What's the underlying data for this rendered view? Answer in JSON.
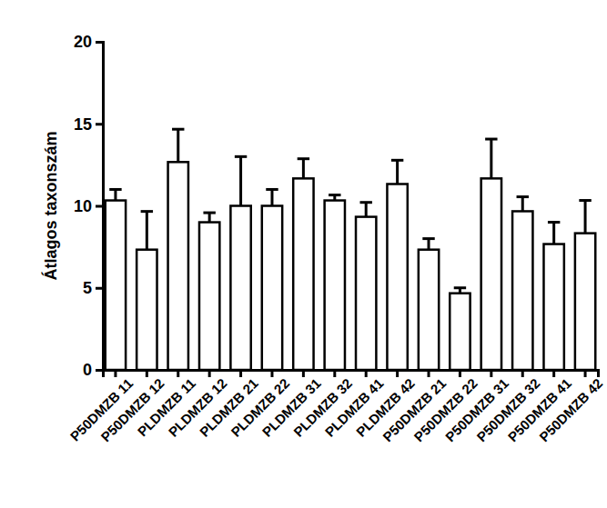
{
  "chart_data": {
    "type": "bar",
    "y_label": "Átlagos taxonszám",
    "categories": [
      "P50DMZB 11",
      "P50DMZB 12",
      "PLDMZB 11",
      "PLDMZB 12",
      "PLDMZB 21",
      "PLDMZB 22",
      "PLDMZB 31",
      "PLDMZB 32",
      "PLDMZB 41",
      "PLDMZB 42",
      "P50DMZB 21",
      "P50DMZB 22",
      "P50DMZB 31",
      "P50DMZB 32",
      "P50DMZB 41",
      "P50DMZB 42"
    ],
    "values": [
      10.33,
      7.33,
      12.67,
      9.0,
      10.0,
      10.0,
      11.67,
      10.33,
      9.33,
      11.33,
      7.33,
      4.67,
      11.67,
      9.67,
      7.67,
      8.33
    ],
    "errors": [
      0.67,
      2.33,
      2.0,
      0.58,
      3.0,
      1.0,
      1.2,
      0.33,
      0.88,
      1.45,
      0.67,
      0.33,
      2.4,
      0.88,
      1.33,
      2.0
    ],
    "color": "#ffffff",
    "ylim": [
      0,
      20
    ],
    "yticks": [
      0,
      5,
      10,
      15,
      20
    ],
    "grid": false
  }
}
